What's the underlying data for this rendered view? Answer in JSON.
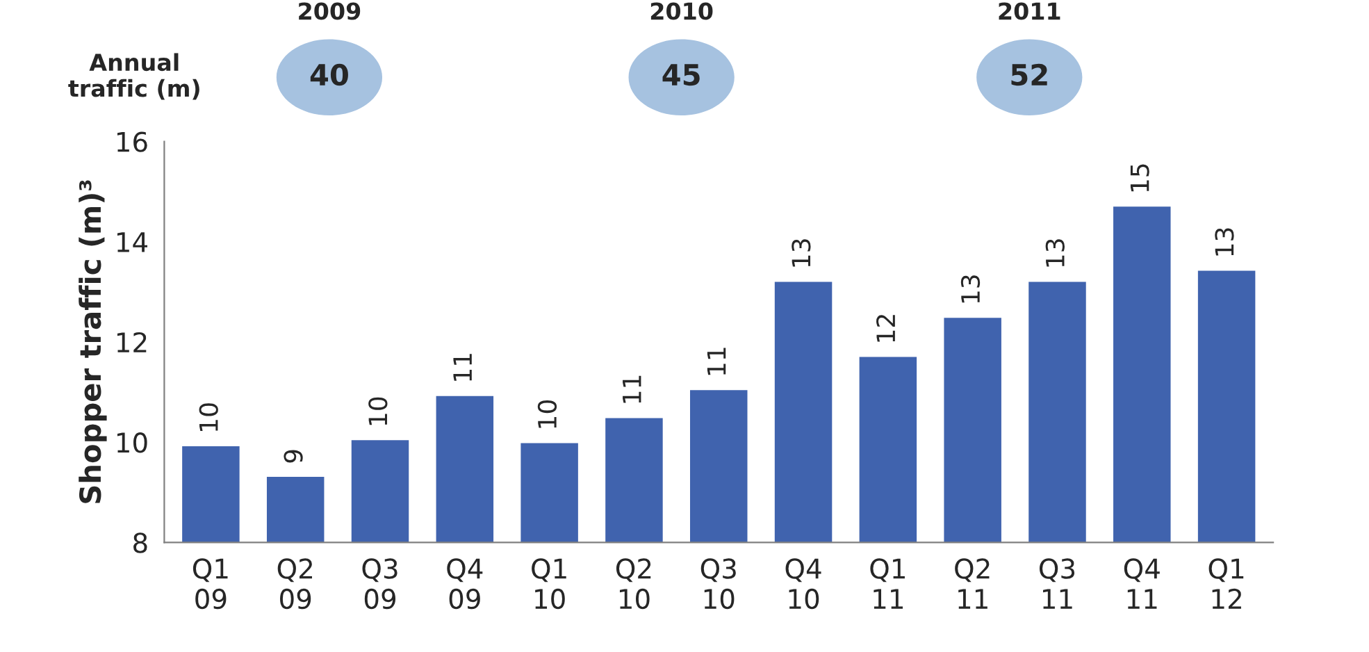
{
  "chart_data": {
    "type": "bar",
    "ylabel": "Shopper traffic (m)³",
    "categories": [
      "Q1\n09",
      "Q2\n09",
      "Q3\n09",
      "Q4\n09",
      "Q1\n10",
      "Q2\n10",
      "Q3\n10",
      "Q4\n10",
      "Q1\n11",
      "Q2\n11",
      "Q3\n11",
      "Q4\n11",
      "Q1\n12"
    ],
    "values": [
      9.94,
      9.33,
      10.06,
      10.94,
      10.0,
      10.5,
      11.06,
      13.22,
      11.72,
      12.5,
      13.22,
      14.72,
      13.44
    ],
    "value_labels": [
      "10",
      "9",
      "10",
      "11",
      "10",
      "11",
      "11",
      "13",
      "12",
      "13",
      "13",
      "15",
      "13"
    ],
    "color": "#4063ae",
    "ylim": [
      8,
      16
    ],
    "yticks": [
      8,
      10,
      12,
      14,
      16
    ],
    "grid": false,
    "legend": false,
    "annotations": [
      "Annual\ntraffic (m)",
      "2009",
      "40",
      "2010",
      "45",
      "2011",
      "52"
    ]
  }
}
